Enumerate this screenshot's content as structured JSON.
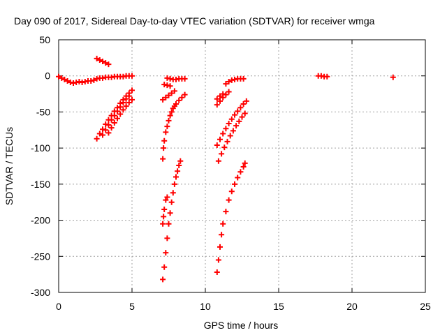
{
  "chart_data": {
    "type": "scatter",
    "title": "Day 090 of 2017, Sidereal Day-to-day VTEC variation (SDTVAR) for receiver wmga",
    "xlabel": "GPS time / hours",
    "ylabel": "SDTVAR / TECUs",
    "xlim": [
      0,
      25
    ],
    "ylim": [
      -300,
      50
    ],
    "xticks": [
      0,
      5,
      10,
      15,
      20,
      25
    ],
    "yticks": [
      50,
      0,
      -50,
      -100,
      -150,
      -200,
      -250,
      -300
    ],
    "grid": true,
    "marker": "plus",
    "color": "#ff0000",
    "series": [
      {
        "x": [
          0.0,
          0.2,
          0.4,
          0.6,
          0.8,
          1.0,
          1.2,
          1.4,
          1.6,
          1.8,
          2.0,
          2.2,
          2.4,
          2.6,
          2.8,
          3.0,
          3.2,
          3.4,
          3.6,
          3.8,
          4.0,
          4.2,
          4.4,
          4.6,
          4.8,
          5.0
        ],
        "y": [
          -1,
          -3,
          -5,
          -7,
          -9,
          -10,
          -9,
          -8,
          -9,
          -8,
          -7,
          -7,
          -6,
          -4,
          -3,
          -3,
          -2,
          -2,
          -2,
          -1,
          -1,
          -1,
          -1,
          0,
          0,
          0
        ]
      },
      {
        "x": [
          2.6,
          2.8,
          3.0,
          3.2,
          3.4
        ],
        "y": [
          24,
          22,
          20,
          18,
          16
        ]
      },
      {
        "x": [
          2.6,
          2.8,
          3.0,
          3.2,
          3.4,
          3.6,
          3.8,
          4.0,
          4.2,
          4.4,
          4.6,
          4.8,
          5.0
        ],
        "y": [
          -87,
          -80,
          -74,
          -67,
          -61,
          -55,
          -49,
          -44,
          -38,
          -33,
          -28,
          -24,
          -20
        ]
      },
      {
        "x": [
          3.0,
          3.2,
          3.4,
          3.6,
          3.8,
          4.0,
          4.2,
          4.4,
          4.6,
          4.8
        ],
        "y": [
          -82,
          -75,
          -68,
          -61,
          -55,
          -49,
          -43,
          -37,
          -32,
          -28
        ]
      },
      {
        "x": [
          3.4,
          3.6,
          3.8,
          4.0,
          4.2,
          4.4,
          4.6,
          4.8,
          5.0
        ],
        "y": [
          -79,
          -72,
          -65,
          -59,
          -53,
          -47,
          -42,
          -37,
          -33
        ]
      },
      {
        "x": [
          7.1,
          7.3,
          7.5,
          7.7,
          7.9
        ],
        "y": [
          -33,
          -30,
          -27,
          -24,
          -21
        ]
      },
      {
        "x": [
          7.2,
          7.4,
          7.6
        ],
        "y": [
          -12,
          -13,
          -14
        ]
      },
      {
        "x": [
          7.1,
          7.15,
          7.2,
          7.3,
          7.4,
          7.5,
          7.6,
          7.7,
          7.8,
          7.9,
          8.0,
          8.2,
          8.4,
          8.6
        ],
        "y": [
          -115,
          -100,
          -90,
          -78,
          -70,
          -62,
          -55,
          -50,
          -45,
          -42,
          -39,
          -34,
          -30,
          -26
        ]
      },
      {
        "x": [
          7.1,
          7.15,
          7.2,
          7.3,
          7.4
        ],
        "y": [
          -205,
          -195,
          -185,
          -172,
          -168
        ]
      },
      {
        "x": [
          7.1,
          7.2,
          7.3,
          7.4,
          7.5,
          7.6,
          7.7,
          7.8,
          7.9,
          8.0,
          8.1,
          8.2,
          8.3
        ],
        "y": [
          -282,
          -265,
          -245,
          -225,
          -205,
          -190,
          -175,
          -162,
          -150,
          -140,
          -132,
          -124,
          -118
        ]
      },
      {
        "x": [
          7.4,
          7.6,
          7.8,
          8.0,
          8.2,
          8.4,
          8.6
        ],
        "y": [
          -3,
          -4,
          -5,
          -5,
          -4,
          -4,
          -4
        ]
      },
      {
        "x": [
          10.8,
          11.0,
          11.2
        ],
        "y": [
          -32,
          -28,
          -25
        ]
      },
      {
        "x": [
          10.8,
          11.0,
          11.2,
          11.4,
          11.6
        ],
        "y": [
          -40,
          -35,
          -30,
          -26,
          -22
        ]
      },
      {
        "x": [
          11.4,
          11.6,
          11.8,
          12.0,
          12.2,
          12.4,
          12.6
        ],
        "y": [
          -11,
          -8,
          -6,
          -5,
          -4,
          -4,
          -4
        ]
      },
      {
        "x": [
          10.8,
          11.0,
          11.2,
          11.4,
          11.6,
          11.8,
          12.0,
          12.2,
          12.4,
          12.6,
          12.8
        ],
        "y": [
          -96,
          -88,
          -80,
          -73,
          -66,
          -60,
          -54,
          -49,
          -44,
          -39,
          -35
        ]
      },
      {
        "x": [
          10.9,
          11.1,
          11.3,
          11.5,
          11.7,
          11.9,
          12.1,
          12.3,
          12.5,
          12.7
        ],
        "y": [
          -118,
          -108,
          -99,
          -91,
          -83,
          -76,
          -69,
          -63,
          -57,
          -52
        ]
      },
      {
        "x": [
          10.8,
          10.9,
          11.0,
          11.1,
          11.2,
          11.4,
          11.6,
          11.8,
          12.0,
          12.2,
          12.4,
          12.6,
          12.7
        ],
        "y": [
          -272,
          -255,
          -237,
          -220,
          -205,
          -188,
          -172,
          -160,
          -150,
          -141,
          -133,
          -126,
          -121
        ]
      },
      {
        "x": [
          17.7,
          17.9,
          18.1,
          18.3
        ],
        "y": [
          0,
          0,
          -1,
          -1
        ]
      },
      {
        "x": [
          22.8
        ],
        "y": [
          -2
        ]
      }
    ]
  }
}
